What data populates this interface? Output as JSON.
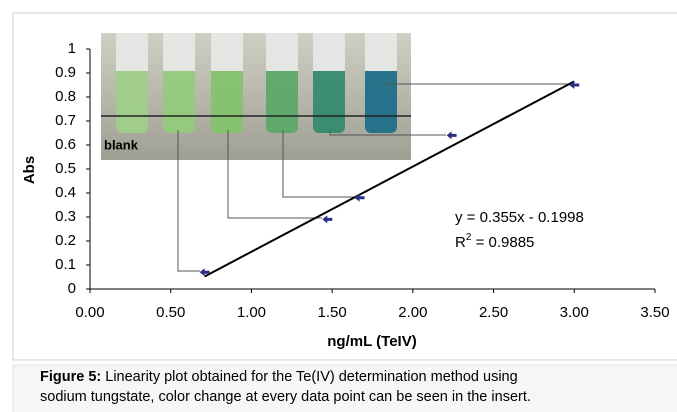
{
  "chart_data": {
    "type": "scatter",
    "x": [
      0.71,
      1.47,
      1.67,
      2.24,
      3.0
    ],
    "values": [
      0.07,
      0.29,
      0.38,
      0.64,
      0.85
    ],
    "color": "#2b2f86",
    "xlabel": "ng/mL (TeIV)",
    "ylabel": "Abs",
    "xlim": [
      0,
      3.5
    ],
    "xticks": [
      {
        "value": 0,
        "label": "0.00"
      },
      {
        "value": 0.5,
        "label": "0.50"
      },
      {
        "value": 1,
        "label": "1.00"
      },
      {
        "value": 1.5,
        "label": "1.50"
      },
      {
        "value": 2,
        "label": "2.00"
      },
      {
        "value": 2.5,
        "label": "2.50"
      },
      {
        "value": 3,
        "label": "3.00"
      },
      {
        "value": 3.5,
        "label": "3.50"
      }
    ],
    "ylim": [
      0,
      1
    ],
    "yticks": [
      0,
      0.1,
      0.2,
      0.3,
      0.4,
      0.5,
      0.6,
      0.7,
      0.8,
      0.9,
      1
    ],
    "trendline": {
      "slope": 0.355,
      "intercept": -0.1998,
      "color": "#000000"
    },
    "equation": "y = 0.355x - 0.1998",
    "r2": {
      "symbol": "R",
      "superscript": "2",
      "text": " = 0.9885"
    },
    "insert_label": "blank",
    "caption_label": "Figure 5:",
    "caption": [
      " Linearity plot obtained for the Te(IV) determination method using",
      "sodium tungstate, color change at every data point can be seen in the insert."
    ]
  }
}
